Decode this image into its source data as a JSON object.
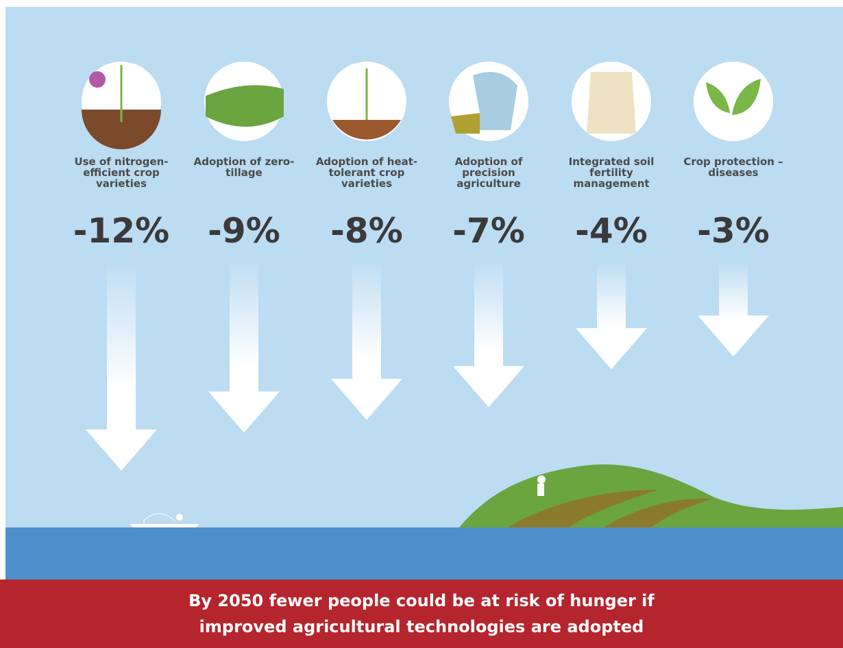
{
  "chart_data": {
    "type": "arrow",
    "categories": [
      "Use of nitrogen-efficient crop varieties",
      "Adoption of zero-tillage",
      "Adoption of heat-tolerant crop varieties",
      "Adoption of precision agriculture",
      "Integrated soil fertility management",
      "Crop protection – diseases"
    ],
    "values": [
      -12,
      -9,
      -8,
      -7,
      -4,
      -3
    ],
    "value_labels": [
      "-12%",
      "-9%",
      "-8%",
      "-7%",
      "-4%",
      "-3%"
    ],
    "color": "#ffffff"
  },
  "footer": "By 2050 fewer people could be at risk of hunger if improved agricultural technologies are adopted"
}
